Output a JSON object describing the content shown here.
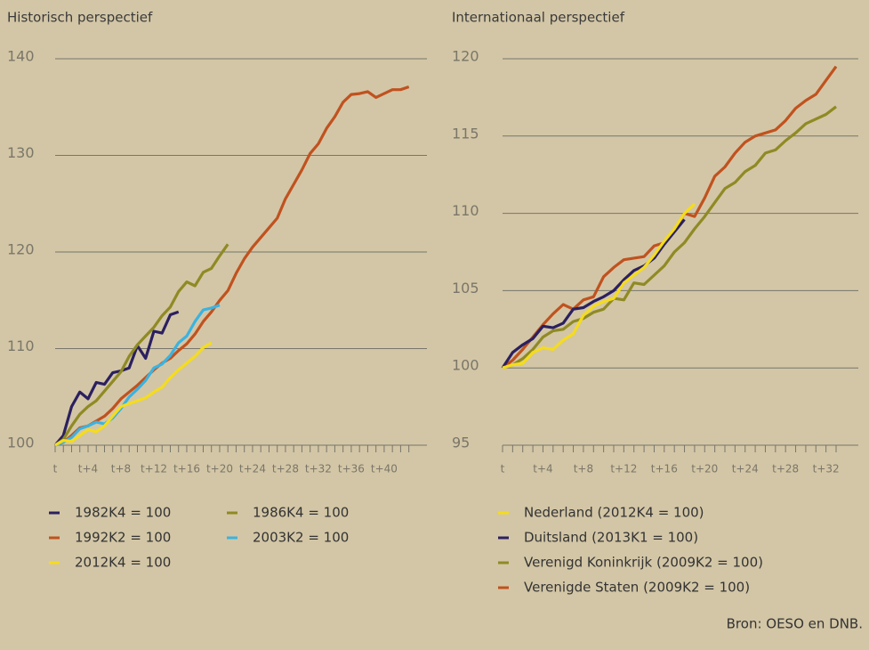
{
  "chart_data": [
    {
      "type": "line",
      "title": "Historisch perspectief",
      "categories": [
        "t",
        null,
        null,
        null,
        "t+4",
        null,
        null,
        null,
        "t+8",
        null,
        null,
        null,
        "t+12",
        null,
        null,
        null,
        "t+16",
        null,
        null,
        null,
        "t+20",
        null,
        null,
        null,
        "t+24",
        null,
        null,
        null,
        "t+28",
        null,
        null,
        null,
        "t+32",
        null,
        null,
        null,
        "t+36",
        null,
        null,
        null,
        "t+40",
        null,
        null,
        null
      ],
      "ylim": [
        100,
        140
      ],
      "yticks": [
        100,
        110,
        120,
        130,
        140
      ],
      "grid": true,
      "series": [
        {
          "name": "1982K4 = 100",
          "color": "#2b2060",
          "values": [
            100,
            101,
            104,
            105.5,
            104.8,
            106.5,
            106.3,
            107.5,
            107.7,
            108,
            110.3,
            109,
            111.8,
            111.6,
            113.5,
            113.8,
            null,
            null,
            null,
            null,
            null,
            null,
            null,
            null,
            null,
            null,
            null,
            null,
            null,
            null,
            null,
            null,
            null,
            null,
            null,
            null,
            null,
            null,
            null,
            null,
            null,
            null,
            null,
            null
          ]
        },
        {
          "name": "1986K4 = 100",
          "color": "#8f8a24",
          "values": [
            100,
            100.6,
            102,
            103.2,
            104,
            104.6,
            105.6,
            106.6,
            107.6,
            109.2,
            110.4,
            111.3,
            112.2,
            113.4,
            114.3,
            115.9,
            116.9,
            116.5,
            117.9,
            118.3,
            119.6,
            120.8,
            null,
            null,
            null,
            null,
            null,
            null,
            null,
            null,
            null,
            null,
            null,
            null,
            null,
            null,
            null,
            null,
            null,
            null,
            null,
            null,
            null,
            null
          ]
        },
        {
          "name": "1992K2 = 100",
          "color": "#c0521f",
          "values": [
            100,
            100.3,
            101,
            101.8,
            102,
            102.5,
            103,
            103.8,
            104.8,
            105.5,
            106.2,
            107,
            107.8,
            108.5,
            109,
            109.8,
            110.5,
            111.5,
            112.8,
            113.8,
            115,
            116,
            117.8,
            119.3,
            120.5,
            121.5,
            122.5,
            123.5,
            125.5,
            127,
            128.5,
            130.2,
            131.2,
            132.8,
            134,
            135.5,
            136.3,
            136.4,
            136.6,
            136,
            136.4,
            136.8,
            136.8,
            137.1
          ]
        },
        {
          "name": "2003K2 = 100",
          "color": "#3bb3e0",
          "values": [
            100,
            100.3,
            100.8,
            101.7,
            102,
            102.4,
            102.2,
            102.8,
            103.8,
            105,
            105.8,
            106.7,
            108,
            108.4,
            109.3,
            110.6,
            111.3,
            112.8,
            114,
            114.2,
            114.5,
            null,
            null,
            null,
            null,
            null,
            null,
            null,
            null,
            null,
            null,
            null,
            null,
            null,
            null,
            null,
            null,
            null,
            null,
            null,
            null,
            null,
            null,
            null
          ]
        },
        {
          "name": "2012K4 = 100",
          "color": "#f5dc1c",
          "values": [
            100,
            100.5,
            100.4,
            101,
            101.6,
            101.4,
            102,
            103,
            104,
            104.3,
            104.6,
            104.9,
            105.5,
            106,
            107,
            107.8,
            108.5,
            109.2,
            110.1,
            110.6,
            null,
            null,
            null,
            null,
            null,
            null,
            null,
            null,
            null,
            null,
            null,
            null,
            null,
            null,
            null,
            null,
            null,
            null,
            null,
            null,
            null,
            null,
            null,
            null
          ]
        }
      ]
    },
    {
      "type": "line",
      "title": "Internationaal perspectief",
      "categories": [
        "t",
        null,
        null,
        null,
        "t+4",
        null,
        null,
        null,
        "t+8",
        null,
        null,
        null,
        "t+12",
        null,
        null,
        null,
        "t+16",
        null,
        null,
        null,
        "t+20",
        null,
        null,
        null,
        "t+24",
        null,
        null,
        null,
        "t+28",
        null,
        null,
        null,
        "t+32",
        null
      ],
      "ylim": [
        95,
        120
      ],
      "yticks": [
        95,
        100,
        105,
        110,
        115,
        120
      ],
      "grid": true,
      "series": [
        {
          "name": "Nederland (2012K4 = 100)",
          "color": "#f5dc1c",
          "values": [
            100,
            100.2,
            100.3,
            101,
            101.3,
            101.2,
            101.8,
            102.2,
            103.4,
            104,
            104.3,
            104.5,
            105.5,
            106,
            106.5,
            107.3,
            108.2,
            109,
            110,
            110.6,
            null,
            null,
            null,
            null,
            null,
            null,
            null,
            null,
            null,
            null,
            null,
            null,
            null,
            null
          ]
        },
        {
          "name": "Duitsland (2013K1 = 100)",
          "color": "#2b2060",
          "values": [
            100,
            101,
            101.5,
            101.9,
            102.7,
            102.6,
            102.9,
            103.8,
            103.9,
            104.3,
            104.6,
            105,
            105.7,
            106.3,
            106.6,
            107.1,
            108,
            108.8,
            109.6,
            null,
            null,
            null,
            null,
            null,
            null,
            null,
            null,
            null,
            null,
            null,
            null,
            null,
            null,
            null
          ]
        },
        {
          "name": "Verenigd Koninkrijk (2009K2 = 100)",
          "color": "#8f8a24",
          "values": [
            100,
            100.2,
            100.6,
            101.2,
            102,
            102.4,
            102.5,
            103,
            103.2,
            103.6,
            103.8,
            104.5,
            104.4,
            105.5,
            105.4,
            106,
            106.6,
            107.5,
            108.1,
            109,
            109.8,
            110.7,
            111.6,
            112,
            112.7,
            113.1,
            113.9,
            114.1,
            114.7,
            115.2,
            115.8,
            116.1,
            116.4,
            116.9
          ]
        },
        {
          "name": "Verenigde Staten (2009K2 = 100)",
          "color": "#c0521f",
          "values": [
            100,
            100.5,
            101.2,
            102,
            102.8,
            103.5,
            104.1,
            103.8,
            104.4,
            104.6,
            105.9,
            106.5,
            107,
            107.1,
            107.2,
            107.9,
            108.1,
            108.9,
            110,
            109.8,
            111,
            112.4,
            113,
            113.9,
            114.6,
            115,
            115.2,
            115.4,
            116,
            116.8,
            117.3,
            117.7,
            118.6,
            119.5
          ]
        }
      ]
    }
  ],
  "source": "Bron: OESO en DNB."
}
